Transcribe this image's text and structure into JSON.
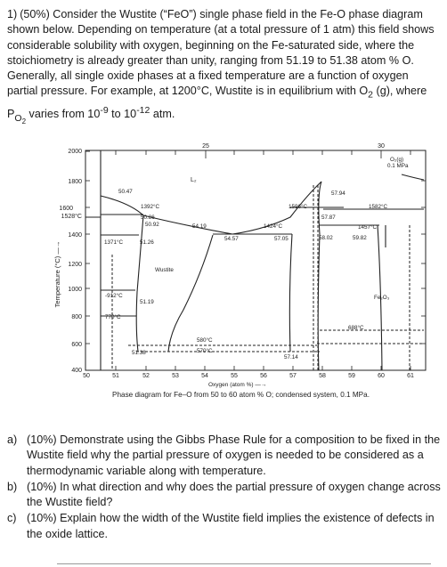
{
  "problem": {
    "number": "1)",
    "text_1": "(50%) Consider the Wustite (“FeO”) single phase field in the Fe-O phase diagram shown below. Depending on temperature (at a total pressure of 1 atm) this field shows considerable solubility with oxygen, beginning on the Fe-saturated side, where the stoichiometry is already greater than unity, ranging from 51.19 to 51.38 atom % O. Generally, all single oxide phases at a fixed temperature are a function of oxygen partial pressure. For example, at 1200°C, Wustite is in equilibrium with O",
    "o2_sub": "2",
    "text_2": " (g), where P",
    "po2_sub": "O",
    "po2_subsub": "2",
    "text_3": " varies from 10",
    "exp_1": "-9",
    "text_4": " to 10",
    "exp_2": "-12",
    "text_5": " atm."
  },
  "diagram": {
    "y_axis_label": "Temperature (°C) —→",
    "y_ticks": [
      "2000",
      "1800",
      "1600",
      "1528°C",
      "1400",
      "1200",
      "1000",
      "800",
      "600",
      "400"
    ],
    "x_ticks": [
      "50",
      "51",
      "52",
      "53",
      "54",
      "55",
      "56",
      "57",
      "58",
      "59",
      "60",
      "61"
    ],
    "x_axis_label": "Oxygen (atom %) —→",
    "top_ticks": [
      "25",
      "30"
    ],
    "caption": "Phase diagram for Fe–O from 50 to 60 atom % O; condensed system, 0.1 MPa.",
    "labels": {
      "l2": "L₂",
      "o2g": "O₂(g)",
      "mpa": "0.1 MPa",
      "v5047": "50.47",
      "t1392": "1392°C",
      "v5086": "50.86",
      "v5092": "50.92",
      "v5419": "54.19",
      "t1371": "1371°C",
      "v5126": "51.26",
      "t1424": "1424°C",
      "v5457": "54.57",
      "v5705": "57.05",
      "t1596": "1596°C",
      "v5794": "57.94",
      "v5787": "57.87",
      "t1582": "1582°C",
      "t1457": "1457°C",
      "v5802": "58.02",
      "v5982": "59.82",
      "wustite": "Wustite",
      "t912": "-912°C",
      "v5119": "51.19",
      "fe2o3": "Fe₂O₃",
      "t770": "770°C",
      "t688": "688°C",
      "t580": "580°C",
      "t570": "570°C",
      "v5138": "51.38",
      "v5714": "57.14"
    }
  },
  "questions": [
    {
      "label": "a)",
      "text": "(10%) Demonstrate using the Gibbs Phase Rule for a composition to be fixed in the Wustite field why the partial pressure of oxygen is needed to be considered as a thermodynamic variable along with temperature."
    },
    {
      "label": "b)",
      "text": "(10%) In what direction and why does the partial pressure of oxygen change across the Wustite field?"
    },
    {
      "label": "c)",
      "text": "(10%) Explain how the width of the Wustite field implies the existence of defects in the oxide lattice."
    }
  ]
}
